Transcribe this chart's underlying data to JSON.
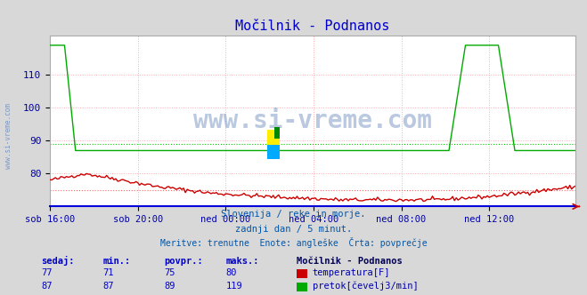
{
  "title": "Močilnik - Podnanos",
  "title_color": "#0000cc",
  "bg_color": "#d8d8d8",
  "plot_bg_color": "#ffffff",
  "grid_color_major": "#ffaaaa",
  "watermark": "www.si-vreme.com",
  "watermark_color": "#6688bb",
  "ylabel_color": "#0000aa",
  "xlabel_ticks": [
    "sob 16:00",
    "sob 20:00",
    "ned 00:00",
    "ned 04:00",
    "ned 08:00",
    "ned 12:00"
  ],
  "xlabel_tick_positions": [
    0,
    48,
    96,
    144,
    192,
    240
  ],
  "total_points": 288,
  "ylim": [
    70,
    122
  ],
  "yticks": [
    80,
    90,
    100,
    110
  ],
  "subtitle1": "Slovenija / reke in morje.",
  "subtitle2": "zadnji dan / 5 minut.",
  "subtitle3": "Meritve: trenutne  Enote: angleške  Črta: povprečje",
  "subtitle_color": "#0055aa",
  "legend_title": "Močilnik - Podnanos",
  "legend_title_color": "#000055",
  "legend_color": "#0000aa",
  "table_headers": [
    "sedaj:",
    "min.:",
    "povpr.:",
    "maks.:"
  ],
  "table_row1": [
    "77",
    "71",
    "75",
    "80"
  ],
  "table_row2": [
    "87",
    "87",
    "89",
    "119"
  ],
  "temp_color": "#cc0000",
  "flow_color": "#00aa00",
  "avg_temp_color": "#ff6666",
  "avg_flow_color": "#00cc00",
  "temp_label": "temperatura[F]",
  "flow_label": "pretok[čevelj3/min]",
  "temp_avg": 75,
  "flow_avg": 89,
  "temp_min": 71,
  "temp_max": 80,
  "flow_min": 87,
  "flow_max": 119
}
